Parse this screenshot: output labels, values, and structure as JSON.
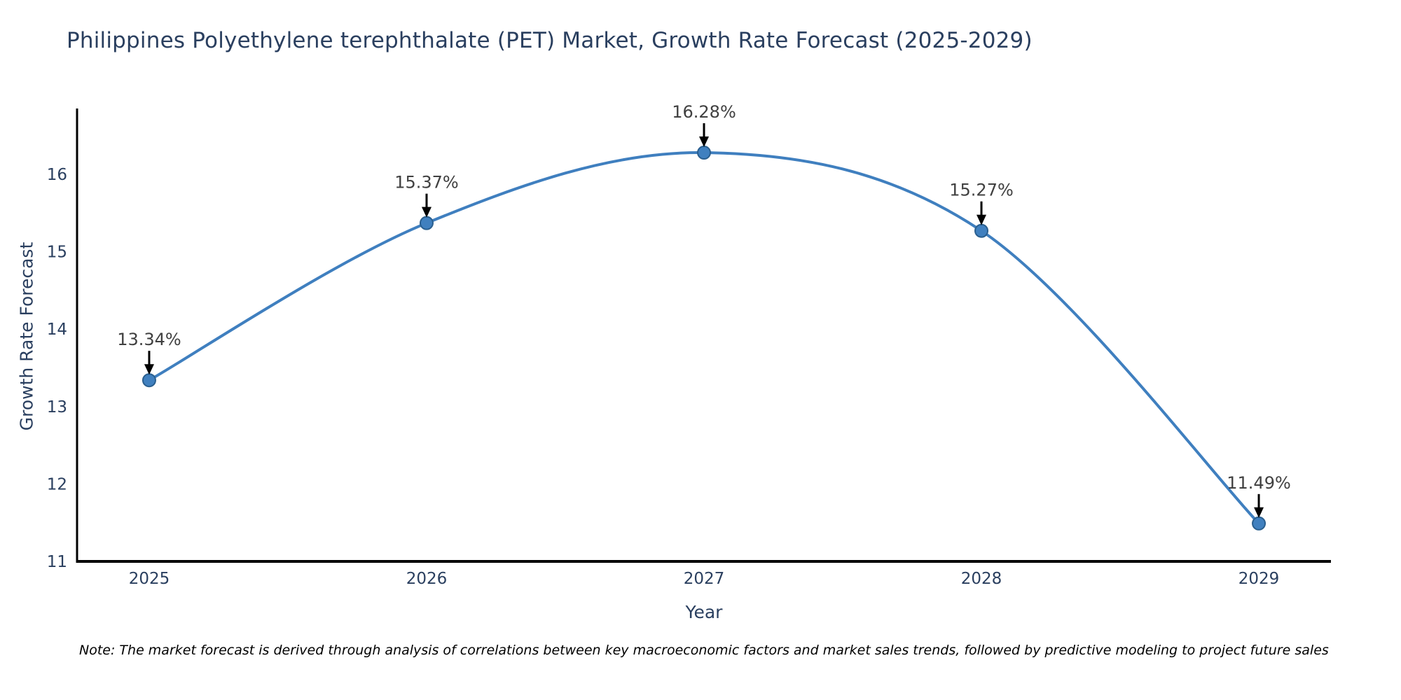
{
  "title": "Philippines Polyethylene terephthalate (PET) Market, Growth Rate Forecast (2025-2029)",
  "note": "Note: The market forecast is derived through analysis of correlations between key macroeconomic factors and market sales trends, followed by predictive modeling to project future sales",
  "chart_data": {
    "type": "line",
    "title": "Philippines Polyethylene terephthalate (PET) Market, Growth Rate Forecast (2025-2029)",
    "xlabel": "Year",
    "ylabel": "Growth Rate Forecast",
    "x": [
      2025,
      2026,
      2027,
      2028,
      2029
    ],
    "values": [
      13.34,
      15.37,
      16.28,
      15.27,
      11.49
    ],
    "point_labels": [
      "13.34%",
      "15.37%",
      "16.28%",
      "15.27%",
      "11.49%"
    ],
    "xticks": [
      "2025",
      "2026",
      "2027",
      "2028",
      "2029"
    ],
    "yticks": [
      11,
      12,
      13,
      14,
      15,
      16
    ],
    "xlim": [
      2024.74,
      2029.26
    ],
    "ylim": [
      11,
      16.85
    ],
    "grid": false,
    "line_shape": "spline",
    "legend": "none",
    "colors": {
      "line": "#3f7fbf",
      "marker_fill": "#4080bf",
      "marker_edge": "#2a5f8f",
      "axis_line": "#000000",
      "tick_text": "#2a3f5f",
      "annotation_text": "#404040",
      "annotation_arrow": "#000000"
    }
  }
}
